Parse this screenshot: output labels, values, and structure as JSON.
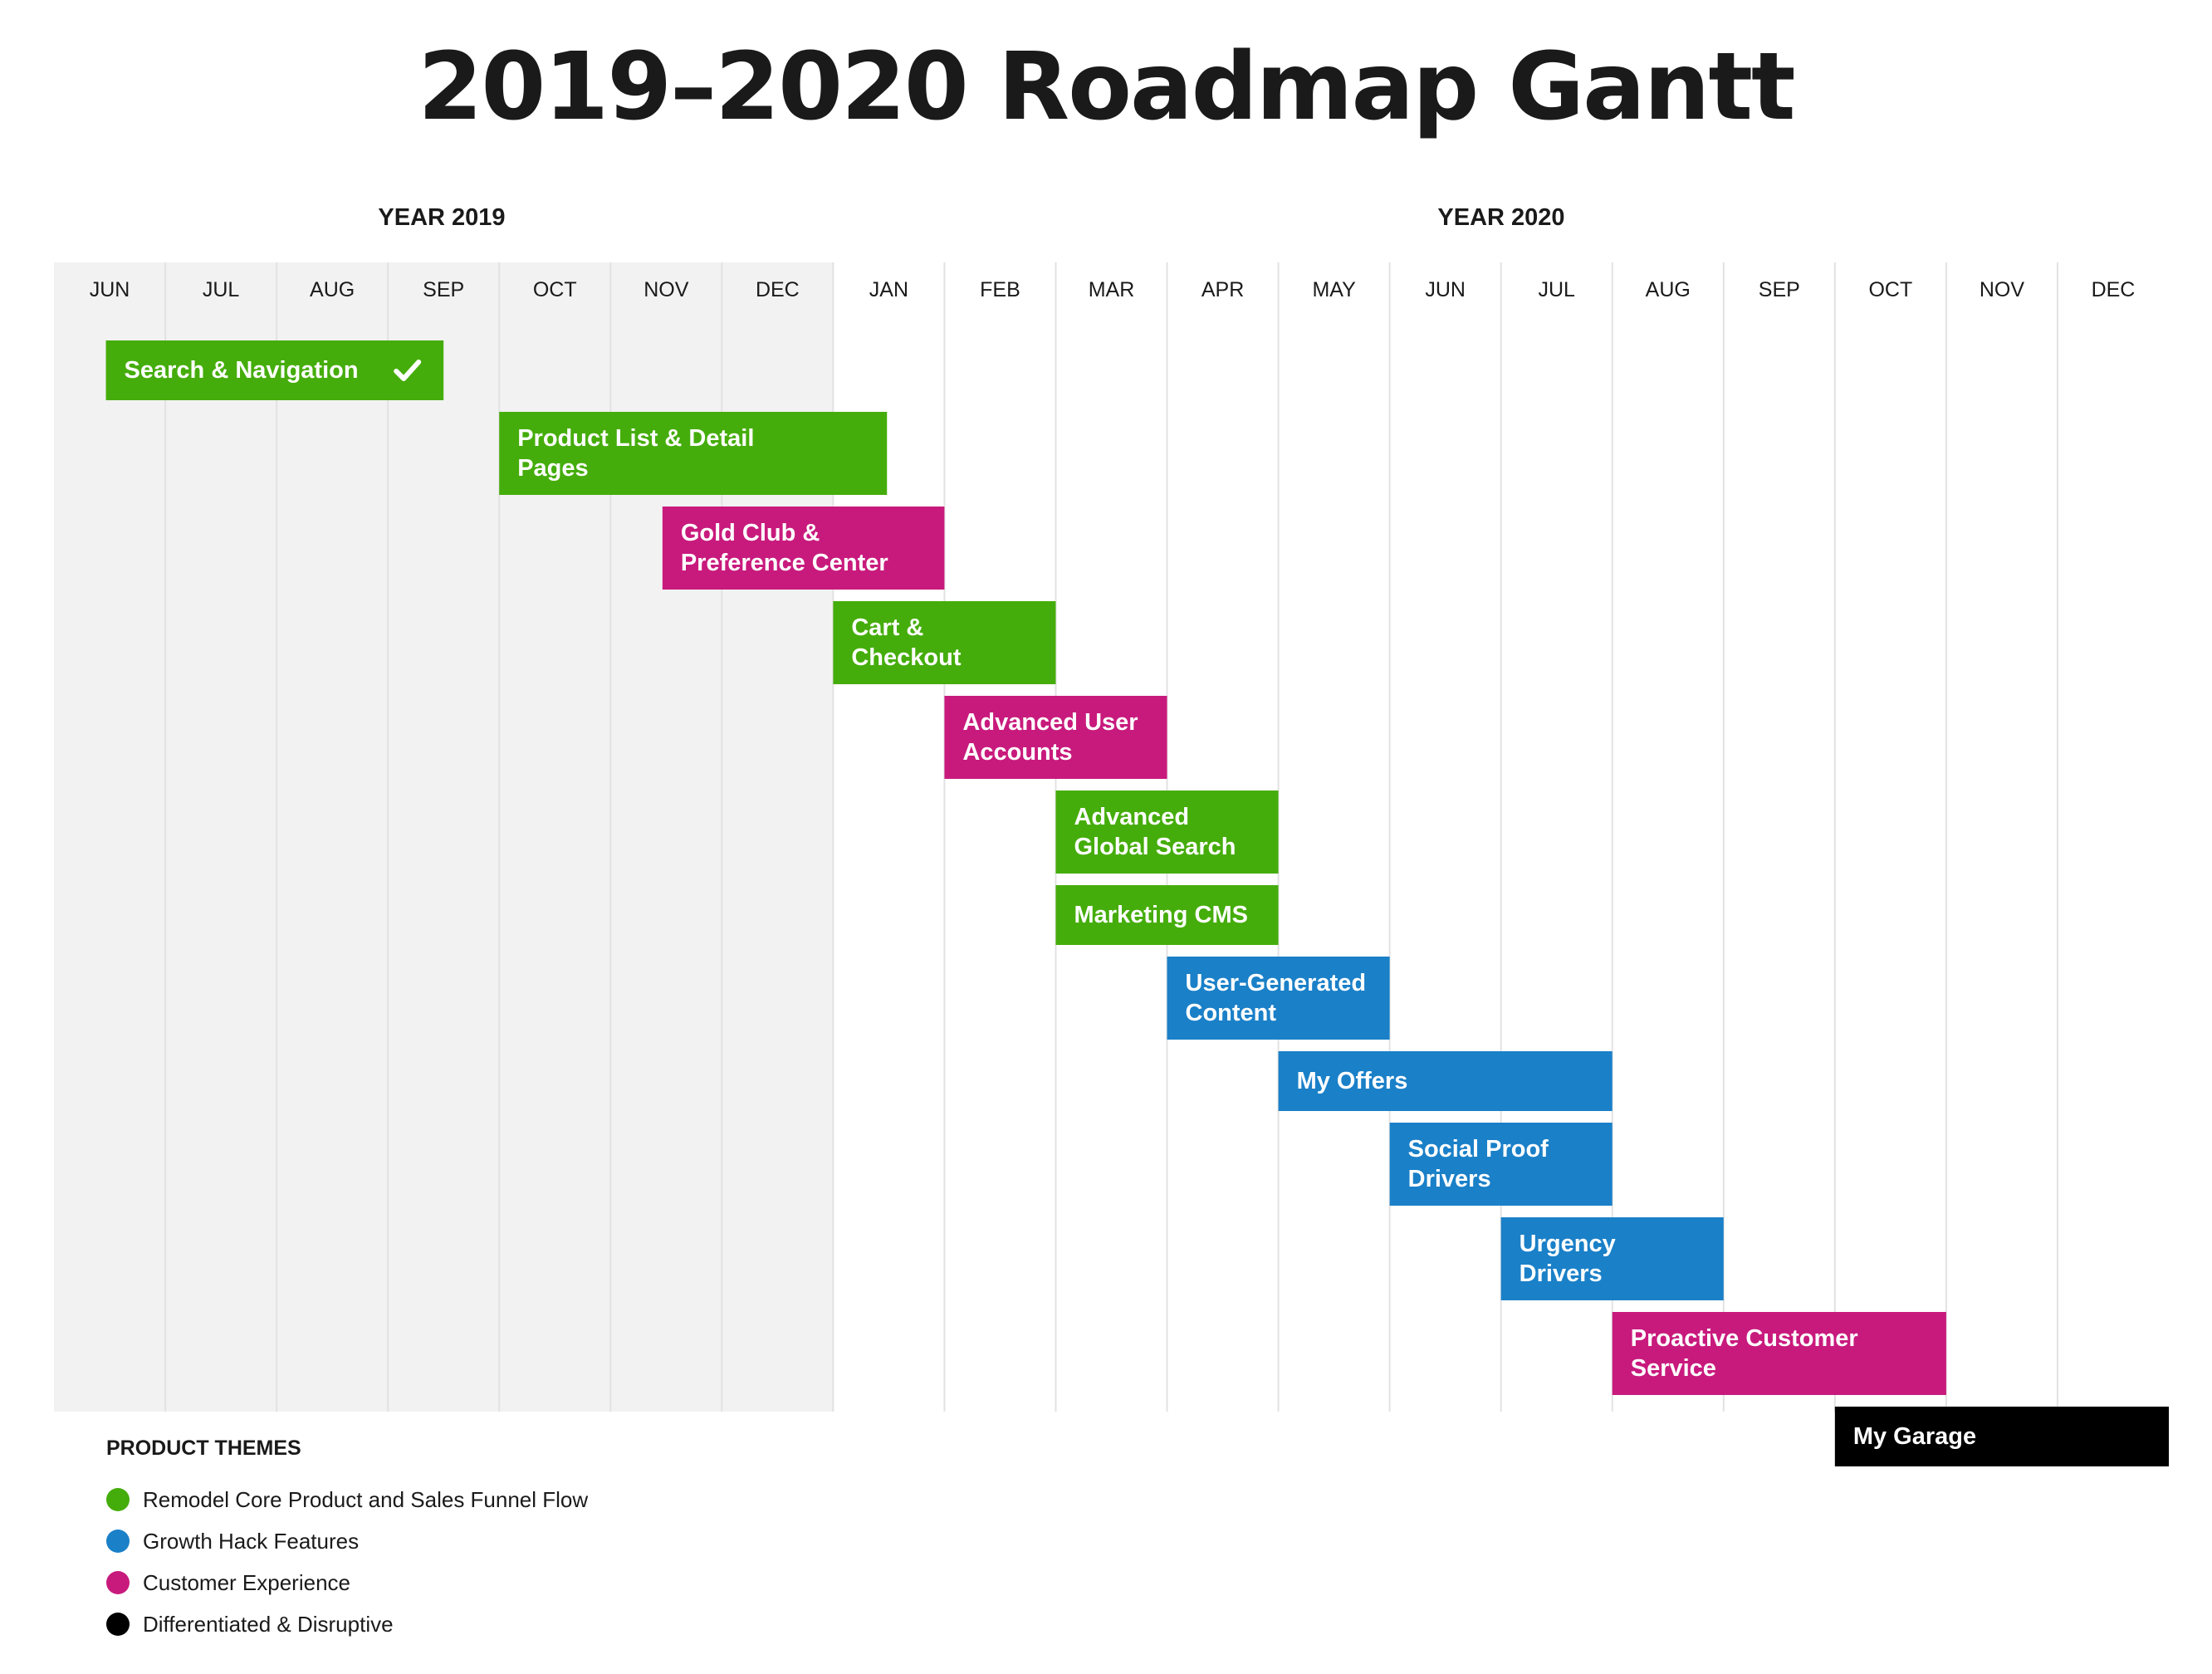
{
  "title": "2019–2020 Roadmap Gantt",
  "years": [
    {
      "label": "YEAR 2019"
    },
    {
      "label": "YEAR 2020"
    }
  ],
  "legend": {
    "title": "PRODUCT THEMES",
    "items": [
      {
        "label": "Remodel Core Product and Sales Funnel Flow",
        "color": "#45AD0B"
      },
      {
        "label": "Growth Hack Features",
        "color": "#1A80C8"
      },
      {
        "label": "Customer Experience",
        "color": "#C81A7D"
      },
      {
        "label": "Differentiated & Disruptive",
        "color": "#000000"
      }
    ]
  },
  "chart_data": {
    "type": "gantt",
    "months": [
      "JUN",
      "JUL",
      "AUG",
      "SEP",
      "OCT",
      "NOV",
      "DEC",
      "JAN",
      "FEB",
      "MAR",
      "APR",
      "MAY",
      "JUN",
      "JUL",
      "AUG",
      "SEP",
      "OCT",
      "NOV",
      "DEC"
    ],
    "month_years": [
      2019,
      2019,
      2019,
      2019,
      2019,
      2019,
      2019,
      2020,
      2020,
      2020,
      2020,
      2020,
      2020,
      2020,
      2020,
      2020,
      2020,
      2020,
      2020
    ],
    "shaded_year": 2019,
    "tasks": [
      {
        "label": "Search & Navigation",
        "theme": "Remodel Core Product and Sales Funnel Flow",
        "start": "2019-06-15",
        "end": "2019-09-15",
        "completed": true
      },
      {
        "label": "Product List & Detail Pages",
        "theme": "Remodel Core Product and Sales Funnel Flow",
        "start": "2019-10-01",
        "end": "2020-01-15"
      },
      {
        "label": "Gold Club & Preference Center",
        "theme": "Customer Experience",
        "start": "2019-11-15",
        "end": "2020-01-31"
      },
      {
        "label": "Cart & Checkout",
        "theme": "Remodel Core Product and Sales Funnel Flow",
        "start": "2020-01-01",
        "end": "2020-02-29"
      },
      {
        "label": "Advanced User Accounts",
        "theme": "Customer Experience",
        "start": "2020-02-01",
        "end": "2020-03-31"
      },
      {
        "label": "Advanced Global Search",
        "theme": "Remodel Core Product and Sales Funnel Flow",
        "start": "2020-03-01",
        "end": "2020-04-30"
      },
      {
        "label": "Marketing CMS",
        "theme": "Remodel Core Product and Sales Funnel Flow",
        "start": "2020-03-01",
        "end": "2020-04-30"
      },
      {
        "label": "User-Generated Content",
        "theme": "Growth Hack Features",
        "start": "2020-04-01",
        "end": "2020-05-31"
      },
      {
        "label": "My Offers",
        "theme": "Growth Hack Features",
        "start": "2020-05-01",
        "end": "2020-07-31"
      },
      {
        "label": "Social Proof Drivers",
        "theme": "Growth Hack Features",
        "start": "2020-06-01",
        "end": "2020-07-31"
      },
      {
        "label": "Urgency Drivers",
        "theme": "Growth Hack Features",
        "start": "2020-07-01",
        "end": "2020-08-31"
      },
      {
        "label": "Proactive Customer Service",
        "theme": "Customer Experience",
        "start": "2020-08-01",
        "end": "2020-10-31"
      },
      {
        "label": "My Garage",
        "theme": "Differentiated & Disruptive",
        "start": "2020-10-01",
        "end": "2020-12-31"
      }
    ]
  }
}
